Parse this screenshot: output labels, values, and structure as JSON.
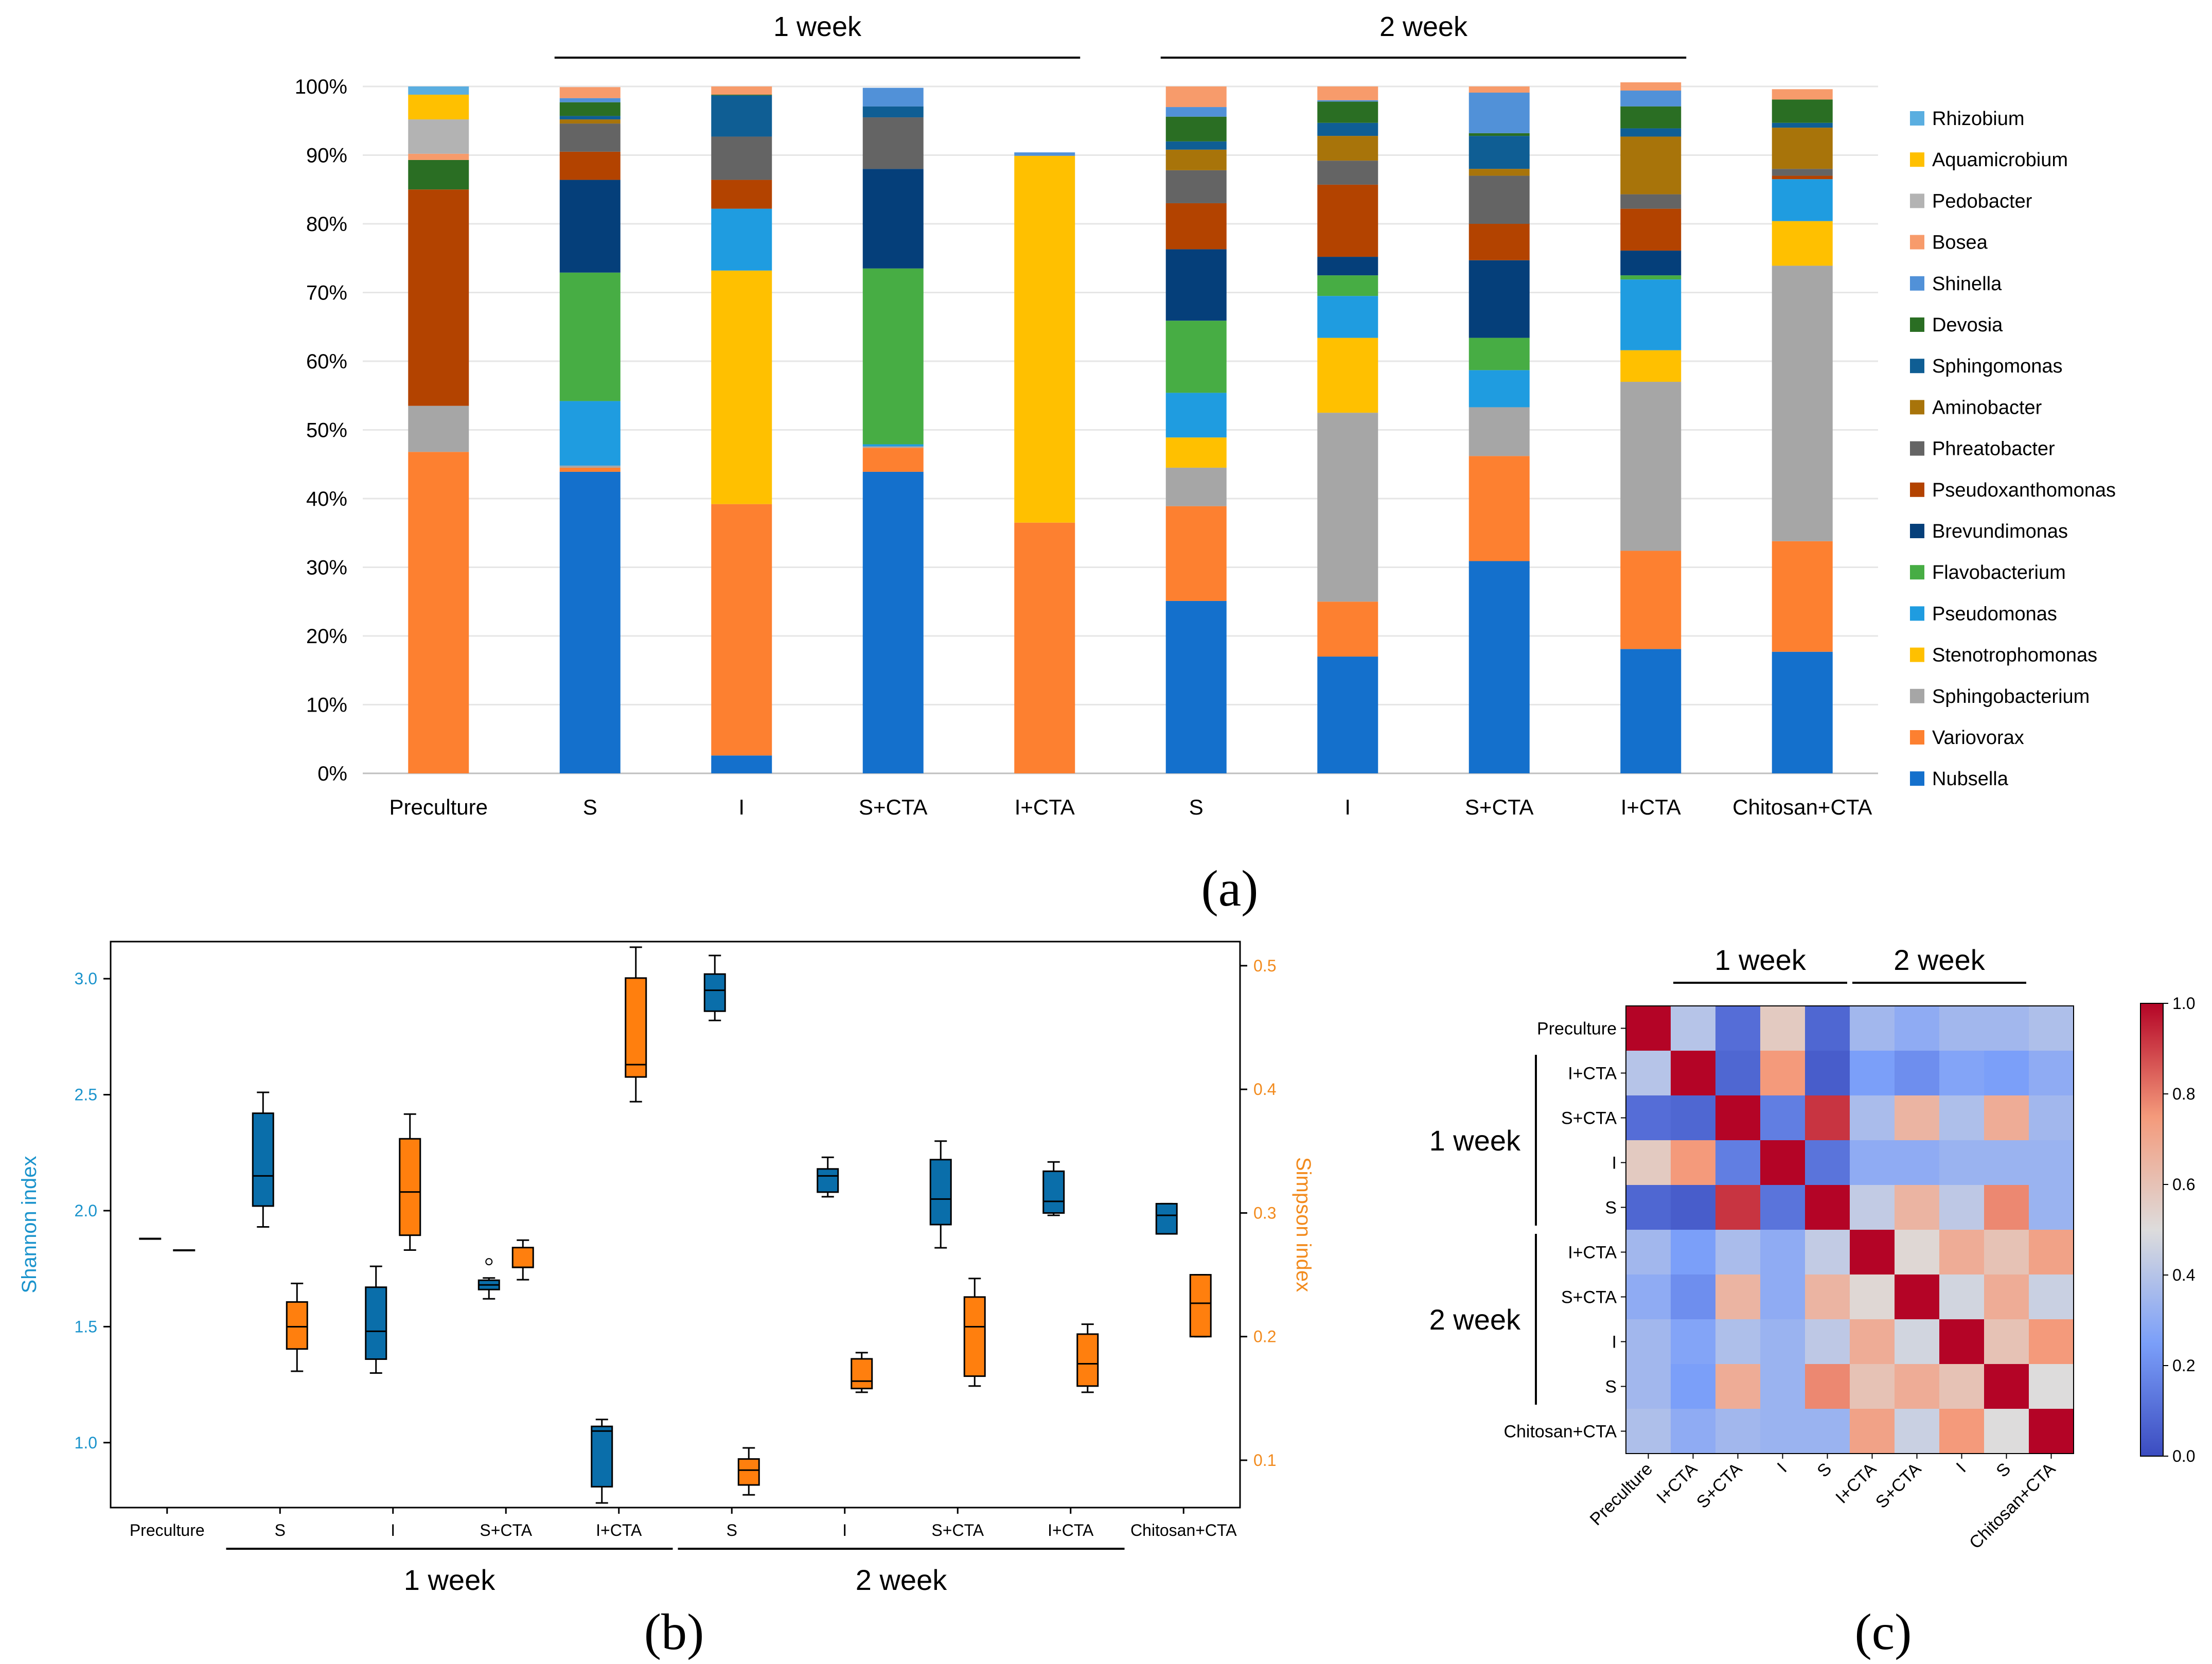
{
  "panel_labels": [
    "(a)",
    "(b)",
    "(c)"
  ],
  "colors": {
    "Rhizobium": "#5aaee0",
    "Aquamicrobium": "#ffc000",
    "Pedobacter": "#b3b3b3",
    "Bosea": "#f79b6b",
    "Shinella": "#5191d8",
    "Devosia": "#2a6e23",
    "Sphingomonas": "#0f5e94",
    "Aminobacter": "#a8740a",
    "Phreatobacter": "#646464",
    "Pseudoxanthomonas": "#b34300",
    "Brevundimonas": "#053f7a",
    "Flavobacterium": "#47ad44",
    "Pseudomonas": "#1f9ce0",
    "Stenotrophomonas": "#ffc000",
    "Sphingobacterium": "#a6a6a6",
    "Variovorax": "#fd8030",
    "Nubsella": "#1470cc",
    "shannon": "#0a6eaa",
    "simpson": "#ff7f0e",
    "shannon_axis": "#1a93cc",
    "simpson_axis": "#f28a1c"
  },
  "chart_data": [
    {
      "panel": "(a)",
      "type": "bar",
      "stacked": true,
      "title": "",
      "xlabel": "",
      "ylabel": "",
      "ylim": [
        0,
        100
      ],
      "yticks": [
        "0%",
        "10%",
        "20%",
        "30%",
        "40%",
        "50%",
        "60%",
        "70%",
        "80%",
        "90%",
        "100%"
      ],
      "group_labels": [
        {
          "label": "1 week",
          "from": 1,
          "to": 4
        },
        {
          "label": "2 week",
          "from": 5,
          "to": 8
        }
      ],
      "legend_position": "right",
      "categories": [
        "Preculture",
        "S",
        "I",
        "S+CTA",
        "I+CTA",
        "S",
        "I",
        "S+CTA",
        "I+CTA",
        "Chitosan+CTA"
      ],
      "series": [
        {
          "name": "Nubsella",
          "values": [
            0,
            43.9,
            2.6,
            43.9,
            0,
            25.1,
            17.0,
            30.9,
            18.1,
            17.7
          ]
        },
        {
          "name": "Variovorax",
          "values": [
            46.8,
            0.6,
            36.6,
            3.5,
            36.5,
            13.8,
            8.0,
            15.3,
            14.3,
            16.1
          ]
        },
        {
          "name": "Sphingobacterium",
          "values": [
            6.7,
            0.3,
            0,
            0.2,
            0,
            5.6,
            27.5,
            7.1,
            24.6,
            40.1
          ]
        },
        {
          "name": "Stenotrophomonas",
          "values": [
            0,
            0,
            34.0,
            0,
            53.4,
            4.4,
            10.9,
            0,
            4.6,
            6.5
          ]
        },
        {
          "name": "Pseudomonas",
          "values": [
            0,
            9.4,
            9.0,
            0.3,
            0,
            6.5,
            6.1,
            5.4,
            10.3,
            6.1
          ]
        },
        {
          "name": "Flavobacterium",
          "values": [
            0,
            18.7,
            0,
            25.6,
            0,
            10.5,
            3.0,
            4.7,
            0.6,
            0
          ]
        },
        {
          "name": "Brevundimonas",
          "values": [
            0,
            13.5,
            0,
            14.5,
            0,
            10.4,
            2.7,
            11.3,
            3.6,
            0
          ]
        },
        {
          "name": "Pseudoxanthomonas",
          "values": [
            31.5,
            4.1,
            4.2,
            0,
            0,
            6.7,
            10.5,
            5.3,
            6.1,
            0.5
          ]
        },
        {
          "name": "Phreatobacter",
          "values": [
            0,
            4.1,
            6.3,
            7.5,
            0,
            4.8,
            3.5,
            7.0,
            2.1,
            1.0
          ]
        },
        {
          "name": "Aminobacter",
          "values": [
            0,
            0.6,
            0,
            0,
            0,
            3.0,
            3.6,
            1.0,
            8.4,
            6.0
          ]
        },
        {
          "name": "Sphingomonas",
          "values": [
            0,
            0.5,
            6.0,
            1.6,
            0,
            1.2,
            1.9,
            4.8,
            1.2,
            0.7
          ]
        },
        {
          "name": "Devosia",
          "values": [
            4.3,
            2.0,
            0.1,
            0,
            0,
            3.6,
            3.1,
            0.4,
            3.2,
            3.4
          ]
        },
        {
          "name": "Shinella",
          "values": [
            0,
            0.6,
            0,
            2.7,
            0.5,
            1.4,
            0.2,
            5.9,
            2.3,
            0
          ]
        },
        {
          "name": "Bosea",
          "values": [
            0.9,
            1.6,
            1.2,
            0,
            0,
            3.0,
            2.0,
            0.9,
            1.2,
            1.5
          ]
        },
        {
          "name": "Pedobacter",
          "values": [
            5.0,
            0,
            0,
            0,
            0,
            0,
            0,
            0,
            0,
            0
          ]
        },
        {
          "name": "Aquamicrobium",
          "values": [
            3.6,
            0,
            0,
            0,
            0,
            0,
            0,
            0,
            0,
            0
          ]
        },
        {
          "name": "Rhizobium",
          "values": [
            1.2,
            0,
            0,
            0,
            0,
            0,
            0,
            0,
            0,
            0
          ]
        }
      ]
    },
    {
      "panel": "(b)",
      "type": "box",
      "title": "",
      "ylabel": "Shannon index",
      "y2label": "Simpson index",
      "ylim": [
        0.72,
        3.16
      ],
      "y2lim": [
        0.0617,
        0.5195
      ],
      "yticks": [
        1.0,
        1.5,
        2.0,
        2.5,
        3.0
      ],
      "yticklabels": [
        "1.0",
        "1.5",
        "2.0",
        "2.5",
        "3.0"
      ],
      "y2ticks": [
        0.1,
        0.2,
        0.3,
        0.4,
        0.5
      ],
      "y2ticklabels": [
        "0.1",
        "0.2",
        "0.3",
        "0.4",
        "0.5"
      ],
      "categories": [
        "Preculture",
        "S",
        "I",
        "S+CTA",
        "I+CTA",
        "S",
        "I",
        "S+CTA",
        "I+CTA",
        "Chitosan+CTA"
      ],
      "group_labels": [
        {
          "label": "1 week",
          "from": 1,
          "to": 4
        },
        {
          "label": "2 week",
          "from": 5,
          "to": 8
        }
      ],
      "series": [
        {
          "name": "Shannon index",
          "axis": "left",
          "boxes": [
            {
              "min": 1.88,
              "q1": 1.88,
              "median": 1.88,
              "q3": 1.88,
              "max": 1.88
            },
            {
              "min": 1.93,
              "q1": 2.02,
              "median": 2.15,
              "q3": 2.42,
              "max": 2.51
            },
            {
              "min": 1.3,
              "q1": 1.36,
              "median": 1.48,
              "q3": 1.67,
              "max": 1.76
            },
            {
              "min": 1.62,
              "q1": 1.66,
              "median": 1.68,
              "q3": 1.7,
              "max": 1.71,
              "outliers": [
                1.78
              ]
            },
            {
              "min": 0.74,
              "q1": 0.81,
              "median": 1.05,
              "q3": 1.07,
              "max": 1.1
            },
            {
              "min": 2.82,
              "q1": 2.86,
              "median": 2.95,
              "q3": 3.02,
              "max": 3.1
            },
            {
              "min": 2.06,
              "q1": 2.08,
              "median": 2.15,
              "q3": 2.18,
              "max": 2.23
            },
            {
              "min": 1.84,
              "q1": 1.94,
              "median": 2.05,
              "q3": 2.22,
              "max": 2.3
            },
            {
              "min": 1.98,
              "q1": 1.99,
              "median": 2.04,
              "q3": 2.17,
              "max": 2.21
            },
            {
              "min": 1.9,
              "q1": 1.9,
              "median": 1.98,
              "q3": 2.03,
              "max": 2.03
            }
          ]
        },
        {
          "name": "Simpson index",
          "axis": "right",
          "boxes": [
            {
              "min": 0.27,
              "q1": 0.27,
              "median": 0.27,
              "q3": 0.27,
              "max": 0.27
            },
            {
              "min": 0.172,
              "q1": 0.19,
              "median": 0.208,
              "q3": 0.228,
              "max": 0.243
            },
            {
              "min": 0.27,
              "q1": 0.282,
              "median": 0.317,
              "q3": 0.36,
              "max": 0.38
            },
            {
              "min": 0.246,
              "q1": 0.256,
              "median": 0.256,
              "q3": 0.272,
              "max": 0.278
            },
            {
              "min": 0.39,
              "q1": 0.41,
              "median": 0.42,
              "q3": 0.49,
              "max": 0.515
            },
            {
              "min": 0.072,
              "q1": 0.08,
              "median": 0.092,
              "q3": 0.101,
              "max": 0.11
            },
            {
              "min": 0.155,
              "q1": 0.158,
              "median": 0.164,
              "q3": 0.182,
              "max": 0.187
            },
            {
              "min": 0.16,
              "q1": 0.168,
              "median": 0.208,
              "q3": 0.232,
              "max": 0.247
            },
            {
              "min": 0.155,
              "q1": 0.16,
              "median": 0.178,
              "q3": 0.202,
              "max": 0.21
            },
            {
              "min": 0.2,
              "q1": 0.2,
              "median": 0.227,
              "q3": 0.25,
              "max": 0.25
            }
          ]
        }
      ]
    },
    {
      "panel": "(c)",
      "type": "heatmap",
      "title": "",
      "rows": [
        "Preculture",
        "I+CTA",
        "S+CTA",
        "I",
        "S",
        "I+CTA",
        "S+CTA",
        "I",
        "S",
        "Chitosan+CTA"
      ],
      "columns": [
        "Preculture",
        "I+CTA",
        "S+CTA",
        "I",
        "S",
        "I+CTA",
        "S+CTA",
        "I",
        "S",
        "Chitosan+CTA"
      ],
      "group_labels": [
        {
          "label": "1 week",
          "from": 1,
          "to": 4
        },
        {
          "label": "2 week",
          "from": 5,
          "to": 8
        }
      ],
      "colorbar": {
        "min": 0.0,
        "max": 1.0,
        "ticks": [
          "0.0",
          "0.2",
          "0.4",
          "0.6",
          "0.8",
          "1.0"
        ]
      },
      "values": [
        [
          1.0,
          0.4,
          0.1,
          0.57,
          0.08,
          0.35,
          0.3,
          0.35,
          0.35,
          0.38
        ],
        [
          0.4,
          1.0,
          0.08,
          0.75,
          0.05,
          0.25,
          0.2,
          0.27,
          0.25,
          0.3
        ],
        [
          0.1,
          0.08,
          1.0,
          0.15,
          0.92,
          0.37,
          0.65,
          0.38,
          0.68,
          0.35
        ],
        [
          0.57,
          0.75,
          0.15,
          1.0,
          0.12,
          0.3,
          0.3,
          0.33,
          0.33,
          0.33
        ],
        [
          0.08,
          0.05,
          0.92,
          0.12,
          1.0,
          0.43,
          0.65,
          0.42,
          0.78,
          0.33
        ],
        [
          0.35,
          0.25,
          0.37,
          0.3,
          0.43,
          1.0,
          0.52,
          0.68,
          0.6,
          0.72
        ],
        [
          0.3,
          0.2,
          0.65,
          0.3,
          0.65,
          0.52,
          1.0,
          0.47,
          0.68,
          0.45
        ],
        [
          0.35,
          0.27,
          0.38,
          0.33,
          0.42,
          0.68,
          0.47,
          1.0,
          0.6,
          0.75
        ],
        [
          0.35,
          0.25,
          0.68,
          0.33,
          0.78,
          0.6,
          0.68,
          0.6,
          1.0,
          0.5
        ],
        [
          0.38,
          0.3,
          0.35,
          0.33,
          0.33,
          0.72,
          0.45,
          0.75,
          0.5,
          1.0
        ]
      ]
    }
  ]
}
